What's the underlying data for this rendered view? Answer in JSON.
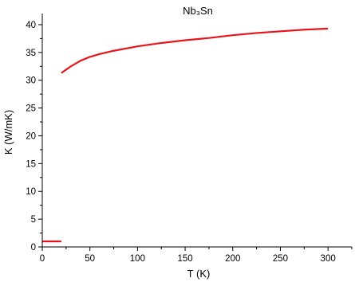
{
  "chart_data": {
    "type": "line",
    "title": "Nb₃Sn",
    "xlabel": "T (K)",
    "ylabel": "K (W/mK)",
    "xlim": [
      0,
      325
    ],
    "ylim": [
      0,
      42
    ],
    "x_ticks": [
      0,
      50,
      100,
      150,
      200,
      250,
      300
    ],
    "y_ticks": [
      0,
      5,
      10,
      15,
      20,
      25,
      30,
      35,
      40
    ],
    "grid": false,
    "color": "#e8141b",
    "series": [
      {
        "segments": [
          {
            "x": [
              0,
              20
            ],
            "y": [
              1.0,
              1.0
            ]
          },
          {
            "x": [
              20,
              25,
              30,
              40,
              50,
              60,
              75,
              100,
              125,
              150,
              175,
              200,
              225,
              250,
              275,
              300
            ],
            "y": [
              31.3,
              31.9,
              32.5,
              33.5,
              34.2,
              34.7,
              35.3,
              36.1,
              36.7,
              37.2,
              37.6,
              38.1,
              38.5,
              38.8,
              39.1,
              39.3
            ]
          }
        ]
      }
    ]
  }
}
